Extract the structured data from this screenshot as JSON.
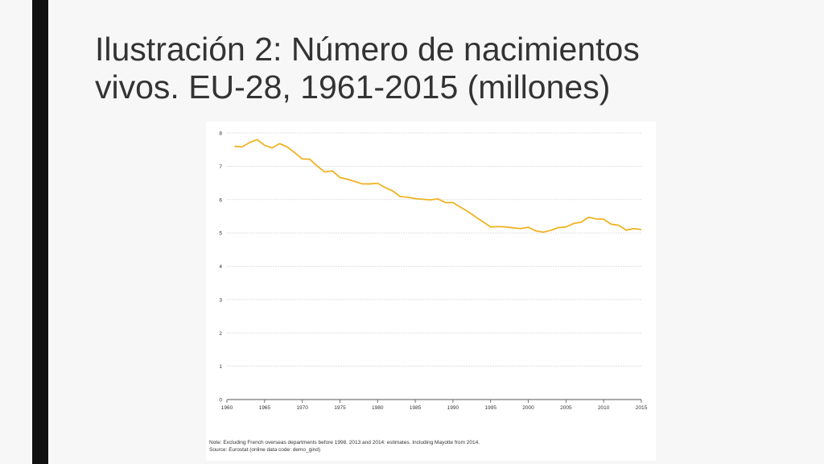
{
  "slide": {
    "title_line1": "Ilustración 2: Número de nacimientos",
    "title_line2": "vivos. EU-28, 1961-2015 (millones)"
  },
  "colors": {
    "line": "#f0b323",
    "grid": "#d6d6d6",
    "axis": "#555555",
    "left_bar": "#111111"
  },
  "chart_data": {
    "type": "line",
    "title": "",
    "xlabel": "",
    "ylabel": "",
    "xlim": [
      1960,
      2015
    ],
    "ylim": [
      0,
      8
    ],
    "yticks": [
      "0",
      "1",
      "2",
      "3",
      "4",
      "5",
      "6",
      "7",
      "8"
    ],
    "xticks": [
      "1960",
      "1965",
      "1970",
      "1975",
      "1980",
      "1985",
      "1990",
      "1995",
      "2000",
      "2005",
      "2010",
      "2015"
    ],
    "grid": "horizontal",
    "series": [
      {
        "name": "",
        "x": [
          1961,
          1962,
          1963,
          1964,
          1965,
          1966,
          1967,
          1968,
          1969,
          1970,
          1971,
          1972,
          1973,
          1974,
          1975,
          1976,
          1977,
          1978,
          1979,
          1980,
          1981,
          1982,
          1983,
          1984,
          1985,
          1986,
          1987,
          1988,
          1989,
          1990,
          1991,
          1992,
          1993,
          1994,
          1995,
          1996,
          1997,
          1998,
          1999,
          2000,
          2001,
          2002,
          2003,
          2004,
          2005,
          2006,
          2007,
          2008,
          2009,
          2010,
          2011,
          2012,
          2013,
          2014,
          2015
        ],
        "values": [
          7.6,
          7.58,
          7.71,
          7.8,
          7.63,
          7.55,
          7.68,
          7.58,
          7.41,
          7.22,
          7.21,
          7.0,
          6.83,
          6.86,
          6.66,
          6.61,
          6.54,
          6.47,
          6.47,
          6.49,
          6.36,
          6.26,
          6.09,
          6.07,
          6.03,
          6.01,
          5.99,
          6.02,
          5.91,
          5.91,
          5.77,
          5.64,
          5.48,
          5.33,
          5.18,
          5.19,
          5.18,
          5.15,
          5.13,
          5.17,
          5.06,
          5.02,
          5.08,
          5.16,
          5.18,
          5.28,
          5.32,
          5.47,
          5.42,
          5.41,
          5.26,
          5.23,
          5.08,
          5.13,
          5.1
        ]
      }
    ]
  },
  "note": {
    "line1": "Note: Excluding French overseas departments before 1998. 2013 and 2014: estimates. Including Mayotte from 2014.",
    "line2": "Source: Eurostat (online data code: demo_gind)"
  }
}
